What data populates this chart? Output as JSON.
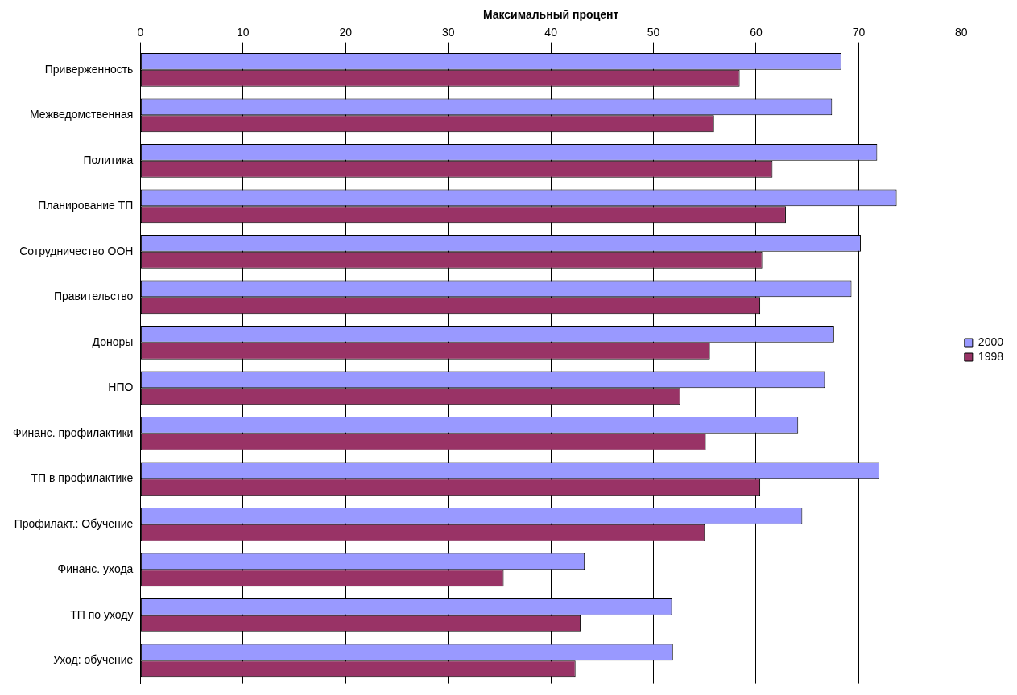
{
  "chart_data": {
    "type": "bar",
    "orientation": "horizontal",
    "xlabel": "Максимальный процент",
    "categories": [
      "Приверженность",
      "Межведомственная",
      "Политика",
      "Планирование ТП",
      "Сотрудничество ООН",
      "Правительство",
      "Доноры",
      "НПО",
      "Финанс. профилактики",
      "ТП в профилактике",
      "Профилакт.: Обучение",
      "Финанс. ухода",
      "ТП по уходу",
      "Уход: обучение"
    ],
    "series": [
      {
        "name": "2000",
        "color": "#9999ff",
        "values": [
          68.3,
          67.4,
          71.8,
          73.7,
          70.2,
          69.3,
          67.6,
          66.7,
          64.1,
          72.0,
          64.5,
          43.3,
          51.8,
          51.9
        ]
      },
      {
        "name": "1998",
        "color": "#993366",
        "values": [
          58.4,
          55.9,
          61.6,
          62.9,
          60.6,
          60.4,
          55.5,
          52.6,
          55.1,
          60.4,
          55.0,
          35.4,
          42.9,
          42.4
        ]
      }
    ],
    "xlim": [
      0,
      80
    ],
    "xticks": [
      0,
      10,
      20,
      30,
      40,
      50,
      60,
      70,
      80
    ],
    "grid": "x",
    "legend": "right"
  }
}
